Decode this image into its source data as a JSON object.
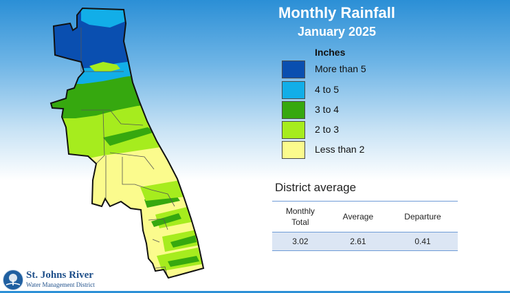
{
  "header": {
    "title": "Monthly Rainfall",
    "subtitle": "January 2025"
  },
  "legend": {
    "title": "Inches",
    "items": [
      {
        "label": "More than 5",
        "color": "#0a4fb0"
      },
      {
        "label": "4 to 5",
        "color": "#12aee8"
      },
      {
        "label": "3 to 4",
        "color": "#36a80f"
      },
      {
        "label": "2 to 3",
        "color": "#a6ec1e"
      },
      {
        "label": "Less than 2",
        "color": "#fbfb8d"
      }
    ]
  },
  "district": {
    "heading": "District average",
    "columns": [
      "Monthly\nTotal",
      "Average",
      "Departure"
    ],
    "values": [
      "3.02",
      "2.61",
      "0.41"
    ]
  },
  "logo": {
    "name": "St. Johns River",
    "subtitle": "Water Management District"
  }
}
